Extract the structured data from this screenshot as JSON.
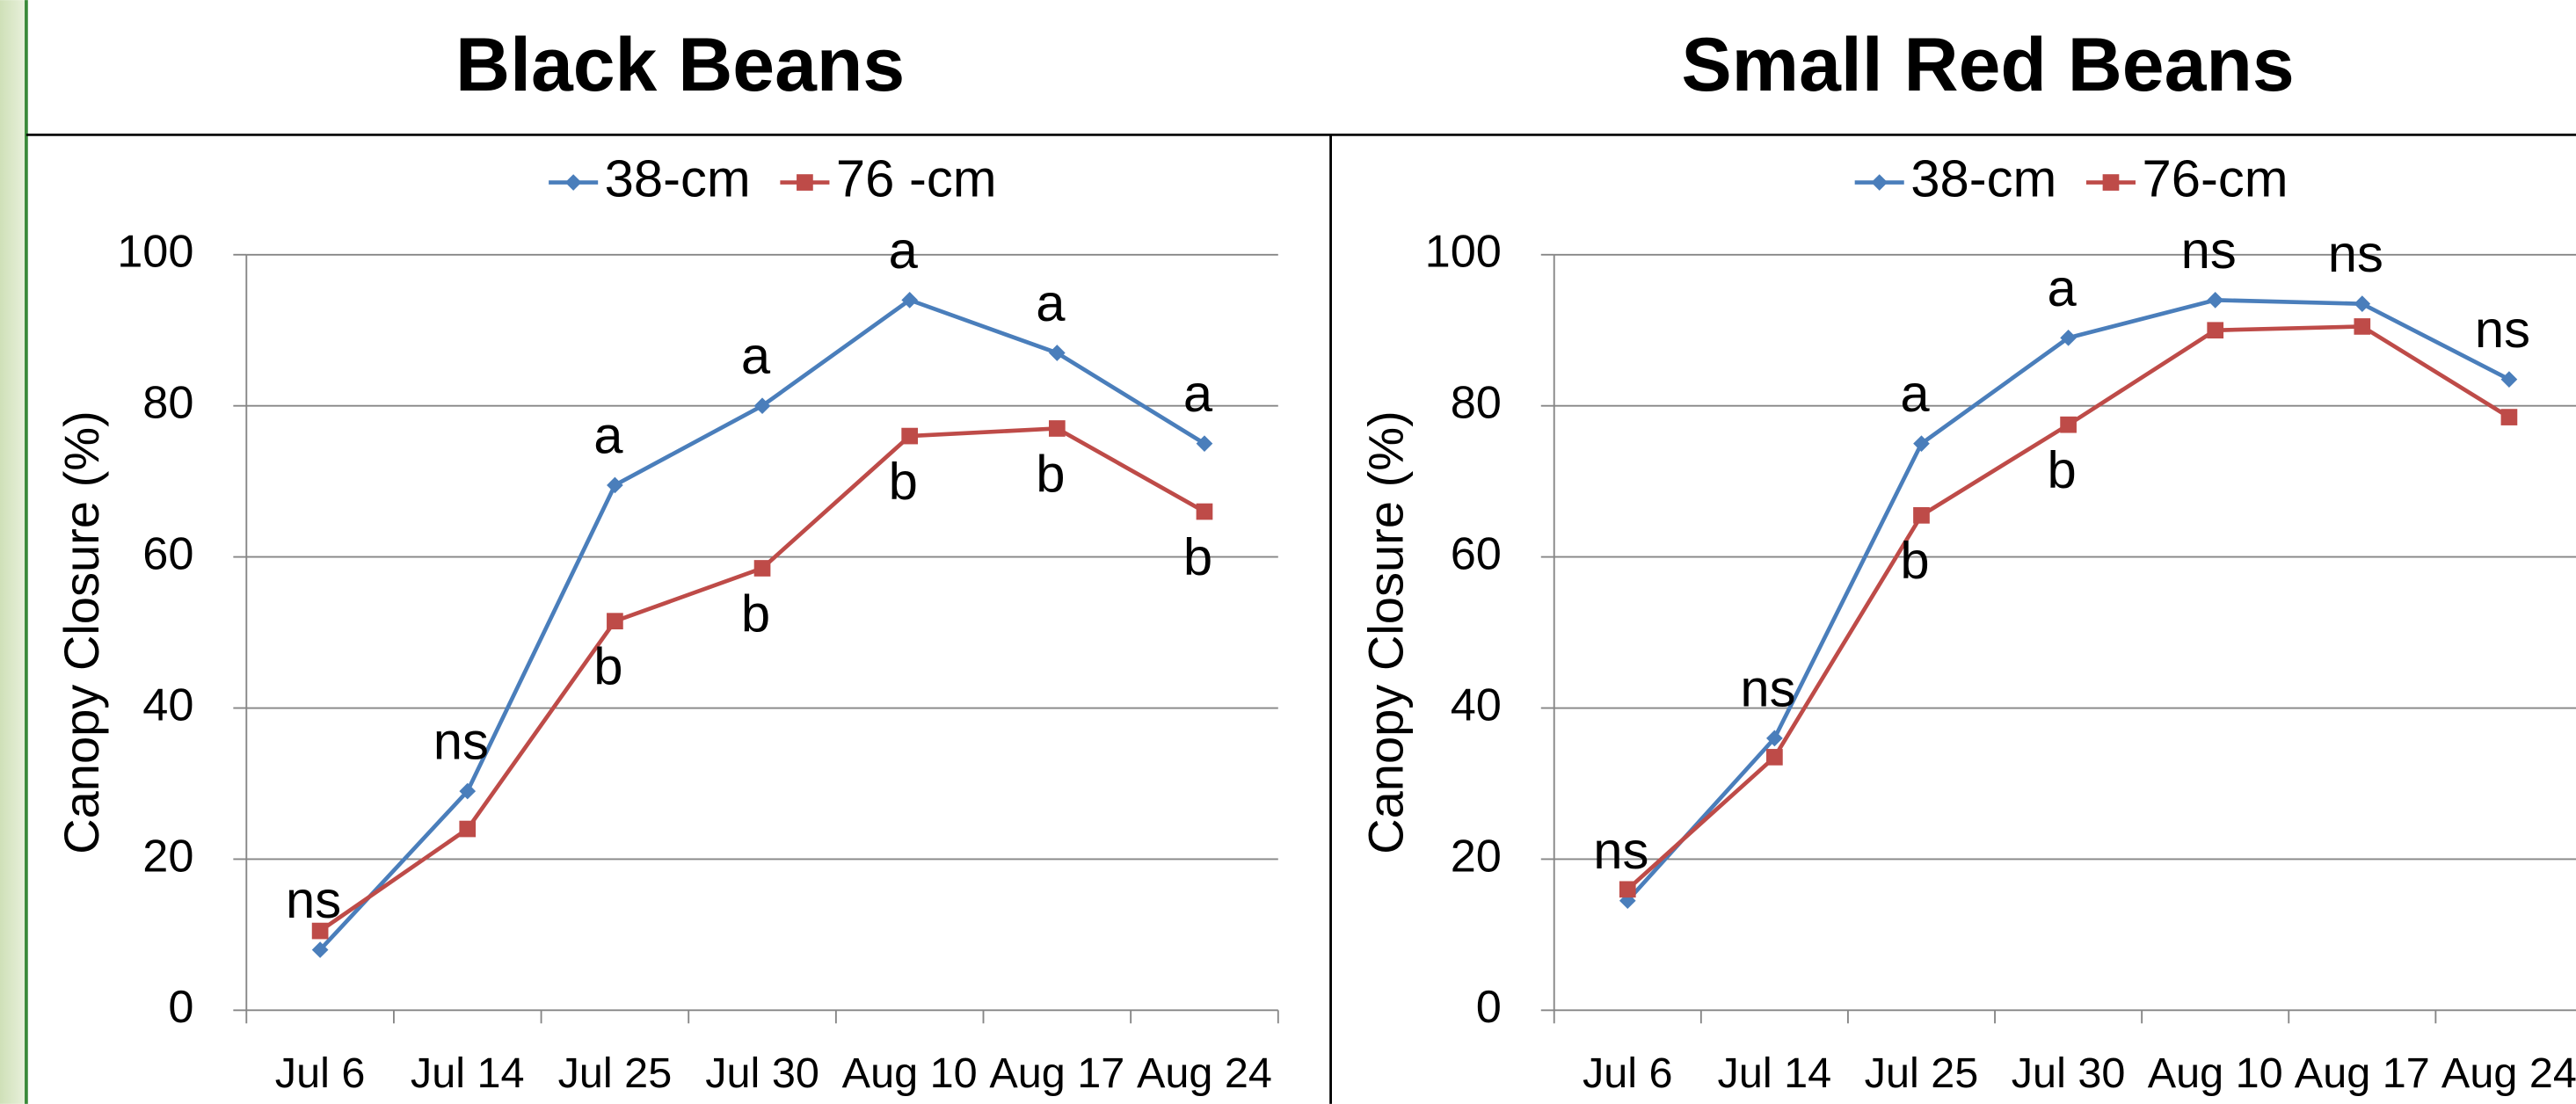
{
  "chart_data": [
    {
      "type": "line",
      "title": "Black Beans",
      "ylabel": "Canopy Closure (%)",
      "categories": [
        "Jul 6",
        "Jul 14",
        "Jul 25",
        "Jul 30",
        "Aug 10",
        "Aug 17",
        "Aug 24"
      ],
      "series": [
        {
          "name": "38-cm",
          "color": "#4a7ebb",
          "marker": "diamond",
          "values": [
            8,
            29,
            69.5,
            80,
            94,
            87,
            75
          ],
          "labels": [
            "ns",
            "ns",
            "a",
            "a",
            "a",
            "a",
            "a"
          ]
        },
        {
          "name": "76 -cm",
          "color": "#be4b48",
          "marker": "square",
          "values": [
            10.5,
            24,
            51.5,
            58.5,
            76,
            77,
            66
          ],
          "labels": [
            null,
            null,
            "b",
            "b",
            "b",
            "b",
            "b"
          ]
        }
      ],
      "ylim": [
        0,
        100
      ],
      "yticks": [
        0,
        20,
        40,
        60,
        80,
        100
      ],
      "grid": true,
      "legend": "top"
    },
    {
      "type": "line",
      "title": "Small Red Beans",
      "ylabel": "Canopy Closure (%)",
      "categories": [
        "Jul 6",
        "Jul 14",
        "Jul 25",
        "Jul 30",
        "Aug 10",
        "Aug 17",
        "Aug 24"
      ],
      "series": [
        {
          "name": "38-cm",
          "color": "#4a7ebb",
          "marker": "diamond",
          "values": [
            14.5,
            36,
            75,
            89,
            94,
            93.5,
            83.5
          ],
          "labels": [
            "ns",
            "ns",
            "a",
            "a",
            "ns",
            "ns",
            "ns"
          ]
        },
        {
          "name": "76-cm",
          "color": "#be4b48",
          "marker": "square",
          "values": [
            16,
            33.5,
            65.5,
            77.5,
            90,
            90.5,
            78.5
          ],
          "labels": [
            null,
            null,
            "b",
            "b",
            null,
            null,
            null
          ]
        }
      ],
      "ylim": [
        0,
        100
      ],
      "yticks": [
        0,
        20,
        40,
        60,
        80,
        100
      ],
      "grid": true,
      "legend": "top"
    }
  ]
}
